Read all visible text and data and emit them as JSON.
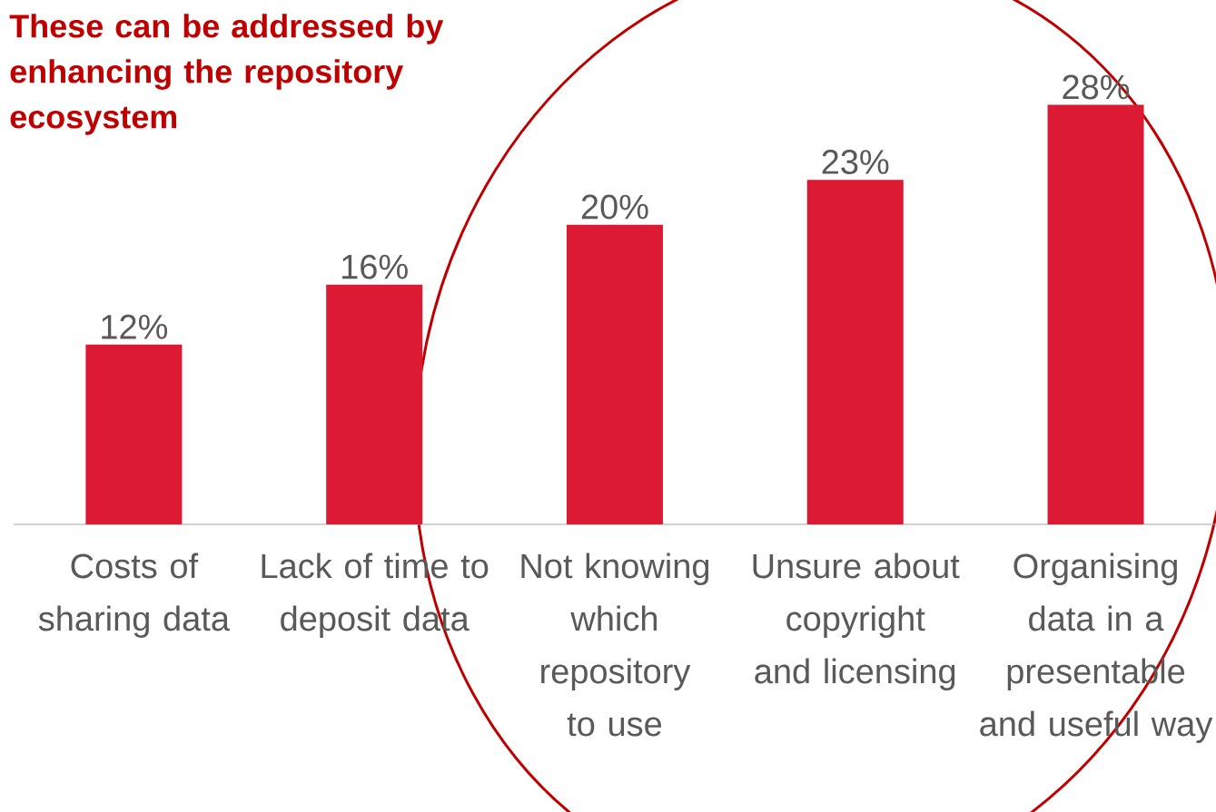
{
  "chart_data": {
    "type": "bar",
    "categories": [
      "Costs of sharing data",
      "Lack of time to deposit data",
      "Not knowing which repository to use",
      "Unsure about copyright and licensing",
      "Organising data in a presentable and useful way"
    ],
    "values": [
      12,
      16,
      20,
      23,
      28
    ],
    "value_labels": [
      "12%",
      "16%",
      "20%",
      "23%",
      "28%"
    ],
    "color": "#dc1a33",
    "annotations": [
      "These can be addressed by enhancing the repository ecosystem"
    ]
  }
}
